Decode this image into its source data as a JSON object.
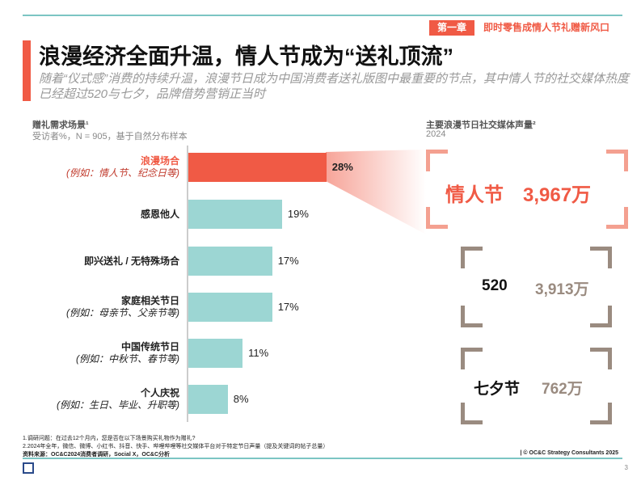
{
  "header": {
    "chapter": "第一章",
    "chapter_title": "即时零售成情人节礼赠新风口"
  },
  "title": "浪漫经济全面升温，情人节成为“送礼顶流”",
  "subtitle": "随着“仪式感”消费的持续升温，浪漫节日成为中国消费者送礼版图中最重要的节点，其中情人节的社交媒体热度已经超过520与七夕，品牌借势营销正当时",
  "left_chart": {
    "title": "赠礼需求场景¹",
    "subtitle": "受访者%，N = 905，基于自然分布样本"
  },
  "right_panel": {
    "title": "主要浪漫节日社交媒体声量²",
    "subtitle": "2024",
    "items": [
      {
        "name": "情人节",
        "value": "3,967万"
      },
      {
        "name": "520",
        "value": "3,913万"
      },
      {
        "name": "七夕节",
        "value": "762万"
      }
    ]
  },
  "chart_data": {
    "type": "bar",
    "orientation": "horizontal",
    "categories": [
      "浪漫场合",
      "感恩他人",
      "即兴送礼 / 无特殊场合",
      "家庭相关节日",
      "中国传统节日",
      "个人庆祝"
    ],
    "category_examples": [
      "(例如：情人节、纪念日等)",
      "",
      "",
      "(例如：母亲节、父亲节等)",
      "(例如：中秋节、春节等)",
      "(例如：生日、毕业、升职等)"
    ],
    "values": [
      28,
      19,
      17,
      17,
      11,
      8
    ],
    "value_labels": [
      "28%",
      "19%",
      "17%",
      "17%",
      "11%",
      "8%"
    ],
    "unit": "%",
    "colors": {
      "highlight": "#f05a45",
      "default": "#9cd6d3"
    }
  },
  "footnotes": [
    "1.调研问题：在过去12个月内，您是否在以下场景购买礼物作为赠礼?",
    "2.2024年全年，微信、微博、小红书、抖音、快手、哔哩哔哩等社交媒体平台对于特定节日声量（提及关键词的帖子总量）",
    "资料来源：OC&C2024消费者调研，Social X，OC&C分析"
  ],
  "copyright": "| © OC&C Strategy Consultants 2025",
  "page_number": "3",
  "colors": {
    "accent": "#f05a45",
    "teal": "#7cc5c3",
    "brown": "#9a8b80"
  }
}
